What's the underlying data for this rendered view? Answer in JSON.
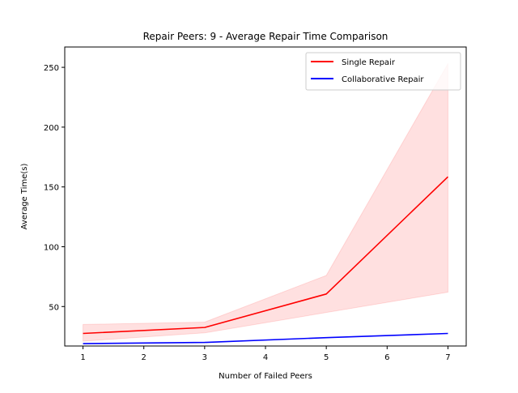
{
  "chart_data": {
    "type": "line",
    "title": "Repair Peers: 9 - Average Repair Time Comparison",
    "xlabel": "Number of Failed Peers",
    "ylabel": "Average Time(s)",
    "xlim": [
      0.7,
      7.3
    ],
    "ylim": [
      17,
      267
    ],
    "xticks": [
      1,
      2,
      3,
      4,
      5,
      6,
      7
    ],
    "yticks": [
      50,
      100,
      150,
      200,
      250
    ],
    "grid": false,
    "legend_position": "top-right",
    "x": [
      1,
      3,
      5,
      7
    ],
    "series": [
      {
        "name": "Single Repair",
        "color": "#ff0000",
        "values": [
          27.5,
          32.5,
          60.5,
          158.5
        ],
        "band": {
          "color": "#ff0000",
          "opacity": 0.12,
          "lower": [
            21,
            28,
            45,
            62
          ],
          "upper": [
            35,
            37,
            76,
            253
          ]
        }
      },
      {
        "name": "Collaborative Repair",
        "color": "#0000ff",
        "values": [
          19,
          20,
          24,
          27.5
        ]
      }
    ]
  }
}
